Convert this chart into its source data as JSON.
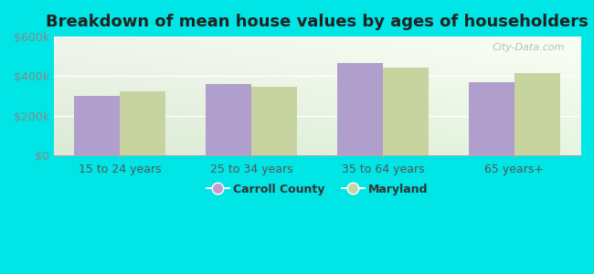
{
  "title": "Breakdown of mean house values by ages of householders",
  "categories": [
    "15 to 24 years",
    "25 to 34 years",
    "35 to 64 years",
    "65 years+"
  ],
  "carroll_county": [
    300000,
    360000,
    465000,
    370000
  ],
  "maryland": [
    325000,
    345000,
    445000,
    415000
  ],
  "carroll_color": "#b09fcc",
  "maryland_color": "#c8d4a0",
  "bar_width": 0.35,
  "ylim": [
    0,
    600000
  ],
  "yticks": [
    0,
    200000,
    400000,
    600000
  ],
  "ytick_labels": [
    "$0",
    "$200k",
    "$400k",
    "$600k"
  ],
  "legend_labels": [
    "Carroll County",
    "Maryland"
  ],
  "legend_marker_colors": [
    "#cc99cc",
    "#c8d4a0"
  ],
  "outer_background": "#00e5e5",
  "title_fontsize": 13,
  "watermark": "City-Data.com"
}
